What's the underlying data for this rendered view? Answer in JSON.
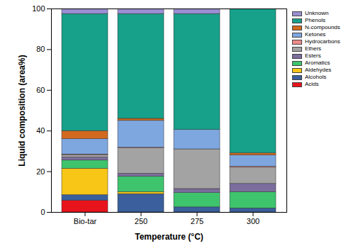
{
  "chart_data": {
    "type": "bar",
    "stacked": true,
    "xlabel": "Temperature (°C)",
    "ylabel": "Liquid composition (area%)",
    "categories": [
      "Bio-tar",
      "250",
      "275",
      "300"
    ],
    "ylim": [
      0,
      100
    ],
    "yticks": [
      0,
      20,
      40,
      60,
      80,
      100
    ],
    "legend": "right",
    "series": [
      {
        "name": "Acids",
        "color": "#e8141c",
        "values": [
          5.8,
          0,
          0,
          0
        ]
      },
      {
        "name": "Alcohols",
        "color": "#3a5f9c",
        "values": [
          2.7,
          9,
          2.5,
          2
        ]
      },
      {
        "name": "Aldehydes",
        "color": "#f7c617",
        "values": [
          13,
          1,
          0,
          0
        ]
      },
      {
        "name": "Aromatics",
        "color": "#3ec46d",
        "values": [
          4,
          7.5,
          7,
          8
        ]
      },
      {
        "name": "Esters",
        "color": "#7b6d9c",
        "values": [
          1.5,
          1.5,
          2,
          4
        ]
      },
      {
        "name": "Ethers",
        "color": "#a3a3a3",
        "values": [
          1.2,
          12.5,
          19.5,
          8
        ]
      },
      {
        "name": "Hydrocarbons",
        "color": "#f08a8a",
        "values": [
          0.3,
          0.3,
          0,
          0.5
        ]
      },
      {
        "name": "Ketones",
        "color": "#7ea7e0",
        "values": [
          7.5,
          13.2,
          9.5,
          5.5
        ]
      },
      {
        "name": "N-compounds",
        "color": "#d2691e",
        "values": [
          4,
          1,
          0,
          1
        ]
      },
      {
        "name": "Phenols",
        "color": "#17a08a",
        "values": [
          57.5,
          51.5,
          57,
          71
        ]
      },
      {
        "name": "Unknown",
        "color": "#9a8fd2",
        "values": [
          2.5,
          2.5,
          2.5,
          0
        ]
      }
    ]
  }
}
